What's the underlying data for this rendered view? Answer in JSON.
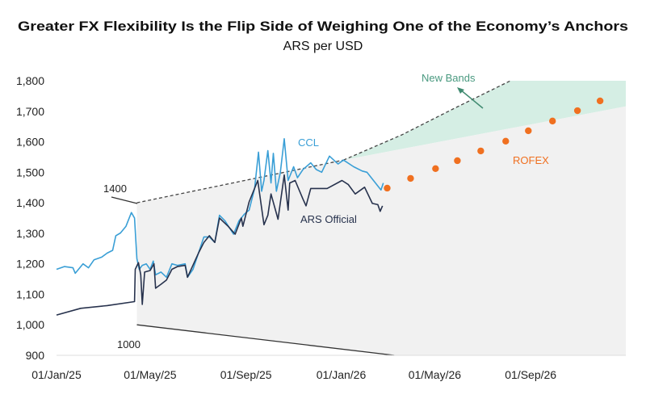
{
  "chart_data": {
    "type": "line",
    "title": "Greater FX Flexibility Is the Flip Side of Weighing One of the Economy’s Anchors",
    "subtitle": "ARS per USD",
    "xlabel": "",
    "ylabel": "",
    "x_unit": "days since 01/Jan/25",
    "xlim": [
      0,
      730
    ],
    "ylim": [
      900,
      1800
    ],
    "y_ticks": [
      900,
      1000,
      1100,
      1200,
      1300,
      1400,
      1500,
      1600,
      1700,
      1800
    ],
    "y_tick_labels": [
      "900",
      "1,000",
      "1,100",
      "1,200",
      "1,300",
      "1,400",
      "1,500",
      "1,600",
      "1,700",
      "1,800"
    ],
    "x_ticks": [
      0,
      120,
      243,
      365,
      485,
      608
    ],
    "x_tick_labels": [
      "01/Jan/25",
      "01/May/25",
      "01/Sep/25",
      "01/Jan/26",
      "01/May/26",
      "01/Sep/26"
    ],
    "grid": false,
    "colors": {
      "ccl": "#3a9fd6",
      "official": "#27324d",
      "rofex": "#f07020",
      "new_bands_fill": "#d5eee4",
      "band_fill": "#f1f1f1",
      "new_bands_text": "#4a9a80",
      "band_line": "#444444"
    },
    "annotations": {
      "upper_start": "1400",
      "lower_start": "1000",
      "ccl": "CCL",
      "official": "ARS Official",
      "new_bands": "New Bands",
      "rofex": "ROFEX"
    },
    "bands": {
      "old_upper": [
        [
          103,
          1400
        ],
        [
          368,
          1540
        ],
        [
          730,
          1716
        ]
      ],
      "lower": [
        [
          103,
          1000
        ],
        [
          433,
          900
        ]
      ],
      "new_upper": [
        [
          368,
          1540
        ],
        [
          443,
          1623
        ],
        [
          512,
          1712
        ],
        [
          582,
          1800
        ],
        [
          730,
          1800
        ]
      ]
    },
    "series": [
      {
        "name": "CCL",
        "points": [
          [
            0,
            1182
          ],
          [
            10,
            1191
          ],
          [
            21,
            1187
          ],
          [
            24,
            1169
          ],
          [
            34,
            1200
          ],
          [
            41,
            1187
          ],
          [
            48,
            1213
          ],
          [
            58,
            1222
          ],
          [
            65,
            1235
          ],
          [
            72,
            1244
          ],
          [
            76,
            1292
          ],
          [
            82,
            1301
          ],
          [
            89,
            1323
          ],
          [
            96,
            1368
          ],
          [
            100,
            1350
          ],
          [
            103,
            1217
          ],
          [
            106,
            1182
          ],
          [
            110,
            1195
          ],
          [
            115,
            1200
          ],
          [
            120,
            1182
          ],
          [
            124,
            1209
          ],
          [
            127,
            1164
          ],
          [
            134,
            1173
          ],
          [
            141,
            1156
          ],
          [
            148,
            1200
          ],
          [
            155,
            1195
          ],
          [
            165,
            1200
          ],
          [
            168,
            1156
          ],
          [
            175,
            1182
          ],
          [
            182,
            1235
          ],
          [
            189,
            1288
          ],
          [
            196,
            1288
          ],
          [
            203,
            1270
          ],
          [
            209,
            1359
          ],
          [
            216,
            1341
          ],
          [
            227,
            1297
          ],
          [
            234,
            1341
          ],
          [
            241,
            1363
          ],
          [
            247,
            1376
          ],
          [
            254,
            1447
          ],
          [
            259,
            1566
          ],
          [
            263,
            1438
          ],
          [
            266,
            1473
          ],
          [
            271,
            1571
          ],
          [
            275,
            1465
          ],
          [
            278,
            1562
          ],
          [
            282,
            1438
          ],
          [
            287,
            1500
          ],
          [
            292,
            1610
          ],
          [
            297,
            1473
          ],
          [
            304,
            1518
          ],
          [
            309,
            1482
          ],
          [
            316,
            1509
          ],
          [
            326,
            1531
          ],
          [
            333,
            1509
          ],
          [
            340,
            1500
          ],
          [
            350,
            1553
          ],
          [
            361,
            1527
          ],
          [
            368,
            1540
          ],
          [
            381,
            1518
          ],
          [
            392,
            1504
          ],
          [
            398,
            1500
          ],
          [
            409,
            1465
          ],
          [
            416,
            1442
          ],
          [
            419,
            1465
          ]
        ]
      },
      {
        "name": "ARS Official",
        "points": [
          [
            0,
            1032
          ],
          [
            31,
            1054
          ],
          [
            65,
            1063
          ],
          [
            100,
            1076
          ],
          [
            101,
            1182
          ],
          [
            105,
            1204
          ],
          [
            108,
            1164
          ],
          [
            110,
            1067
          ],
          [
            113,
            1173
          ],
          [
            120,
            1178
          ],
          [
            125,
            1200
          ],
          [
            127,
            1120
          ],
          [
            134,
            1133
          ],
          [
            141,
            1147
          ],
          [
            148,
            1182
          ],
          [
            155,
            1191
          ],
          [
            165,
            1195
          ],
          [
            168,
            1156
          ],
          [
            182,
            1235
          ],
          [
            189,
            1270
          ],
          [
            196,
            1292
          ],
          [
            203,
            1270
          ],
          [
            209,
            1350
          ],
          [
            220,
            1323
          ],
          [
            229,
            1297
          ],
          [
            237,
            1350
          ],
          [
            239,
            1323
          ],
          [
            247,
            1403
          ],
          [
            258,
            1473
          ],
          [
            266,
            1328
          ],
          [
            271,
            1359
          ],
          [
            275,
            1429
          ],
          [
            284,
            1346
          ],
          [
            292,
            1491
          ],
          [
            297,
            1376
          ],
          [
            299,
            1465
          ],
          [
            306,
            1473
          ],
          [
            316,
            1412
          ],
          [
            320,
            1390
          ],
          [
            326,
            1447
          ],
          [
            340,
            1447
          ],
          [
            347,
            1447
          ],
          [
            366,
            1473
          ],
          [
            374,
            1460
          ],
          [
            383,
            1429
          ],
          [
            395,
            1451
          ],
          [
            405,
            1398
          ],
          [
            412,
            1394
          ],
          [
            415,
            1372
          ],
          [
            418,
            1390
          ]
        ]
      },
      {
        "name": "ROFEX",
        "type": "scatter",
        "points": [
          [
            424,
            1448
          ],
          [
            454,
            1480
          ],
          [
            486,
            1512
          ],
          [
            514,
            1538
          ],
          [
            544,
            1570
          ],
          [
            576,
            1602
          ],
          [
            605,
            1636
          ],
          [
            636,
            1668
          ],
          [
            668,
            1702
          ],
          [
            697,
            1734
          ]
        ]
      }
    ]
  }
}
